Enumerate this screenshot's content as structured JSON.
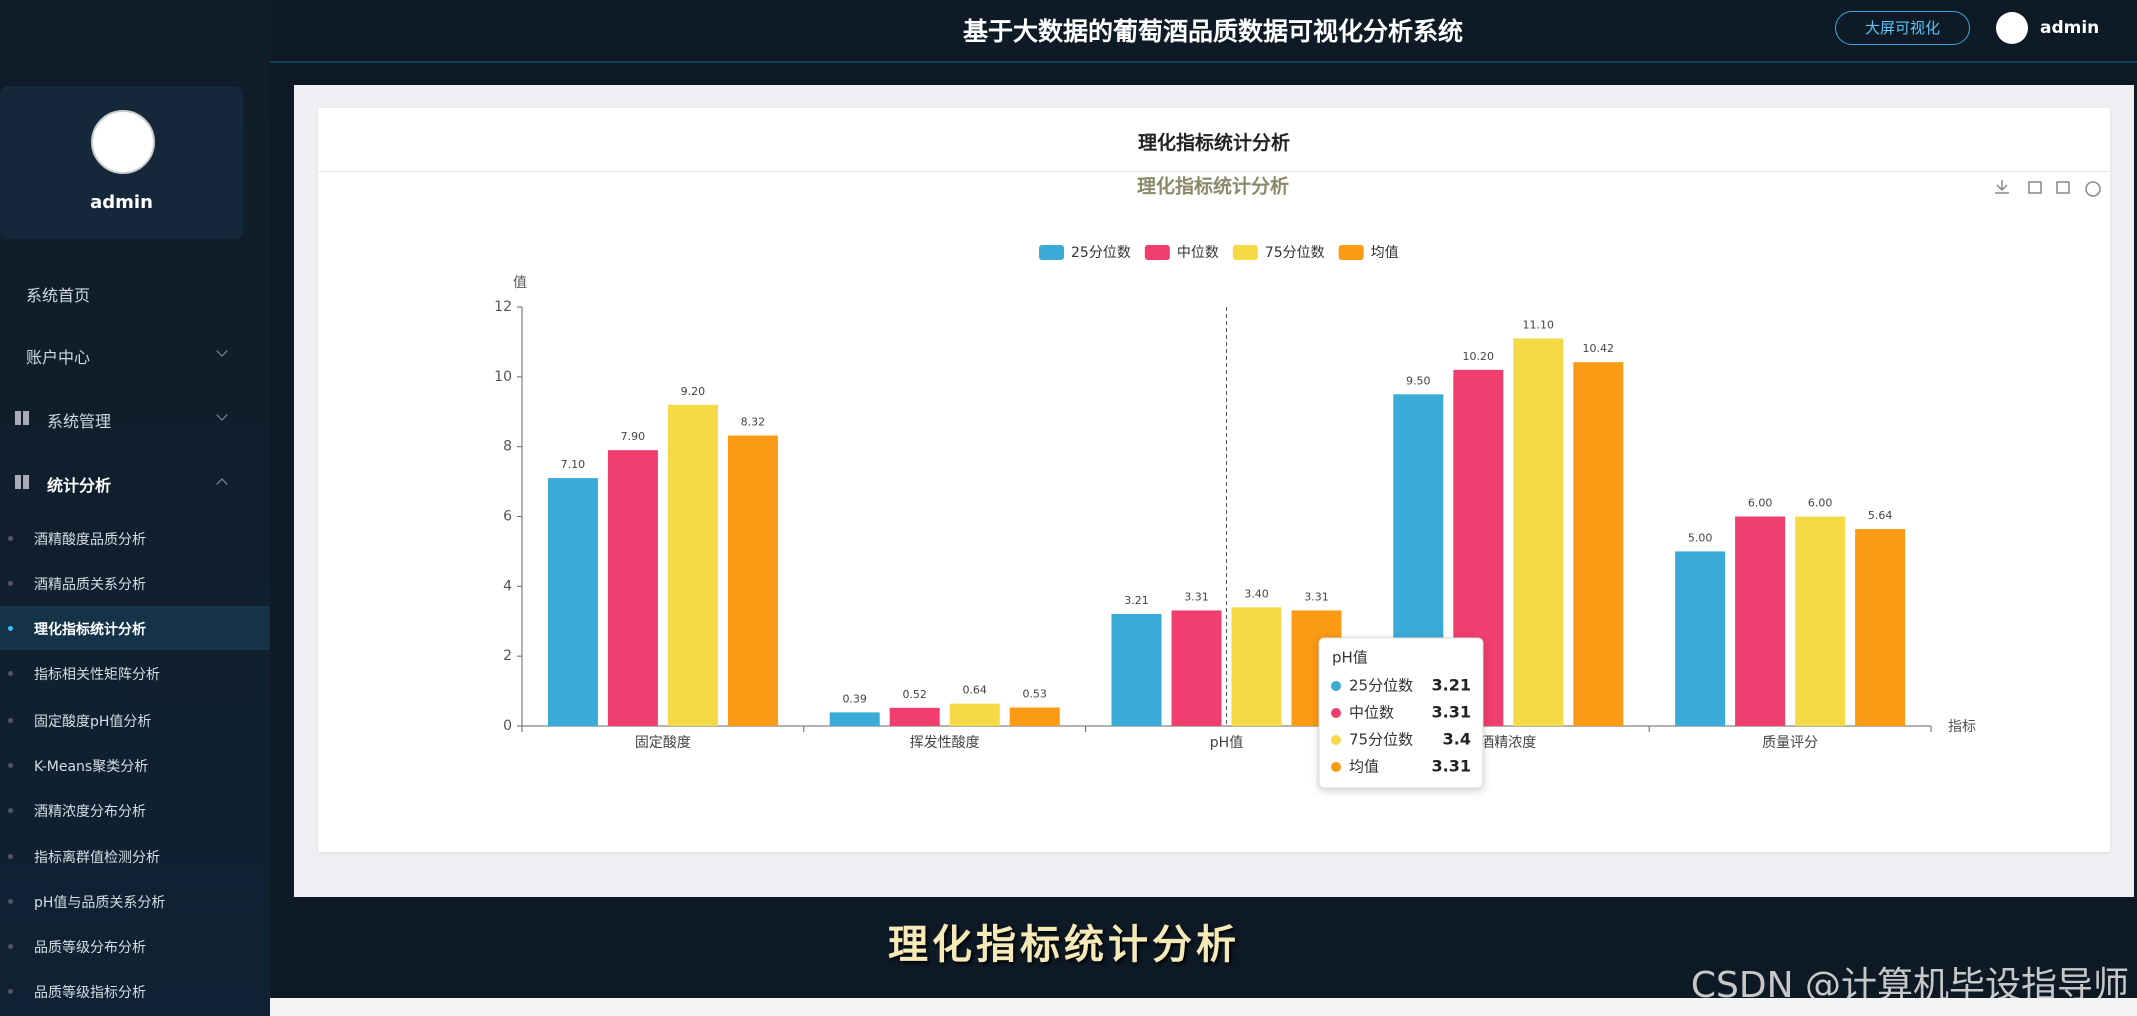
{
  "header": {
    "title": "基于大数据的葡萄酒品质数据可视化分析系统",
    "button": "大屏可视化",
    "user": "admin"
  },
  "sidebar": {
    "user": "admin",
    "menu": [
      "系统首页",
      "账户中心",
      "系统管理",
      "统计分析"
    ],
    "submenu": [
      "酒精酸度品质分析",
      "酒精品质关系分析",
      "理化指标统计分析",
      "指标相关性矩阵分析",
      "固定酸度pH值分析",
      "K-Means聚类分析",
      "酒精浓度分布分析",
      "指标离群值检测分析",
      "pH值与品质关系分析",
      "品质等级分布分析",
      "品质等级指标分析"
    ]
  },
  "card": {
    "title": "理化指标统计分析"
  },
  "caption": "理化指标统计分析",
  "watermark": "CSDN @计算机毕设指导师",
  "chart_data": {
    "type": "bar",
    "title": "理化指标统计分析",
    "y_label": "值",
    "x_label": "指标",
    "categories": [
      "固定酸度",
      "挥发性酸度",
      "pH值",
      "酒精浓度",
      "质量评分"
    ],
    "series": [
      {
        "name": "25分位数",
        "color": "#3aabd6",
        "values": [
          7.1,
          0.39,
          3.21,
          9.5,
          5.0
        ],
        "value_labels": [
          "7.10",
          "0.39",
          "3.21",
          "9.50",
          "5.00"
        ]
      },
      {
        "name": "中位数",
        "color": "#f03e6e",
        "values": [
          7.9,
          0.52,
          3.31,
          10.2,
          6.0
        ],
        "value_labels": [
          "7.90",
          "0.52",
          "3.31",
          "10.20",
          "6.00"
        ]
      },
      {
        "name": "75分位数",
        "color": "#f5d947",
        "values": [
          9.2,
          0.64,
          3.4,
          11.1,
          6.0
        ],
        "value_labels": [
          "9.20",
          "0.64",
          "3.40",
          "11.10",
          "6.00"
        ]
      },
      {
        "name": "均值",
        "color": "#fb9a14",
        "values": [
          8.32,
          0.53,
          3.31,
          10.42,
          5.64
        ],
        "value_labels": [
          "8.32",
          "0.53",
          "3.31",
          "10.42",
          "5.64"
        ]
      }
    ],
    "ylim": [
      0,
      12
    ],
    "yticks": [
      0,
      2,
      4,
      6,
      8,
      10,
      12
    ],
    "grid": false
  }
}
